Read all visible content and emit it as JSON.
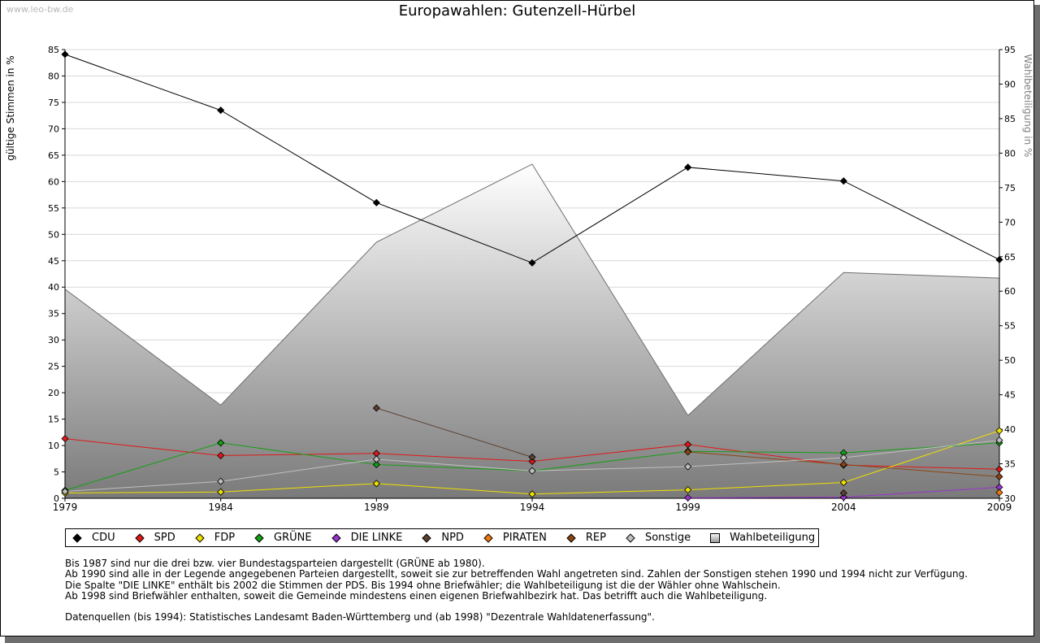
{
  "watermark": "www.leo-bw.de",
  "chart_data": {
    "type": "line",
    "title": "Europawahlen: Gutenzell-Hürbel",
    "ylabel": "gültige Stimmen in %",
    "y2label": "Wahlbeteiligung in %",
    "x": [
      1979,
      1984,
      1989,
      1994,
      1999,
      2004,
      2009
    ],
    "ylim": [
      0,
      85
    ],
    "y2lim": [
      30,
      95
    ],
    "yticks": [
      0,
      5,
      10,
      15,
      20,
      25,
      30,
      35,
      40,
      45,
      50,
      55,
      60,
      65,
      70,
      75,
      80,
      85
    ],
    "y2ticks": [
      30,
      35,
      40,
      45,
      50,
      55,
      60,
      65,
      70,
      75,
      80,
      85,
      90,
      95
    ],
    "grid": true,
    "area_series": {
      "name": "Wahlbeteiligung",
      "axis": "right",
      "values": [
        60.3,
        43.5,
        67.1,
        78.4,
        42.0,
        62.7,
        61.9
      ]
    },
    "series": [
      {
        "name": "CDU",
        "color": "#000000",
        "values": [
          84.1,
          73.5,
          56.0,
          44.6,
          62.7,
          60.1,
          45.2
        ]
      },
      {
        "name": "SPD",
        "color": "#e01818",
        "values": [
          11.3,
          8.1,
          8.5,
          7.0,
          10.2,
          6.3,
          5.5
        ]
      },
      {
        "name": "FDP",
        "color": "#f0e000",
        "values": [
          1.0,
          1.2,
          2.8,
          0.8,
          1.6,
          3.0,
          12.8
        ]
      },
      {
        "name": "GRÜNE",
        "color": "#14a014",
        "values": [
          1.5,
          10.5,
          6.4,
          5.2,
          8.9,
          8.6,
          10.5
        ]
      },
      {
        "name": "DIE LINKE",
        "color": "#9933cc",
        "values": [
          null,
          null,
          null,
          null,
          0.1,
          0.2,
          2.1
        ]
      },
      {
        "name": "NPD",
        "color": "#5a4030",
        "values": [
          null,
          null,
          17.1,
          7.8,
          null,
          1.0,
          null
        ]
      },
      {
        "name": "PIRATEN",
        "color": "#f07810",
        "values": [
          null,
          null,
          null,
          null,
          null,
          null,
          1.1
        ]
      },
      {
        "name": "REP",
        "color": "#8b4513",
        "values": [
          null,
          null,
          null,
          null,
          8.8,
          6.4,
          4.1
        ]
      },
      {
        "name": "Sonstige",
        "color": "#c0c0c0",
        "values": [
          1.3,
          3.2,
          7.4,
          5.2,
          6.0,
          7.7,
          11.0
        ]
      }
    ]
  },
  "legend": [
    {
      "label": "CDU",
      "color": "#000000",
      "shape": "diamond"
    },
    {
      "label": "SPD",
      "color": "#e01818",
      "shape": "diamond"
    },
    {
      "label": "FDP",
      "color": "#f0e000",
      "shape": "diamond"
    },
    {
      "label": "GRÜNE",
      "color": "#14a014",
      "shape": "diamond"
    },
    {
      "label": "DIE LINKE",
      "color": "#9933cc",
      "shape": "diamond"
    },
    {
      "label": "NPD",
      "color": "#5a4030",
      "shape": "diamond"
    },
    {
      "label": "PIRATEN",
      "color": "#f07810",
      "shape": "diamond"
    },
    {
      "label": "REP",
      "color": "#8b4513",
      "shape": "diamond"
    },
    {
      "label": "Sonstige",
      "color": "#c0c0c0",
      "shape": "diamond"
    },
    {
      "label": "Wahlbeteiligung",
      "color": "#c8c8c8",
      "shape": "square"
    }
  ],
  "notes": [
    "Bis 1987 sind nur die drei bzw. vier Bundestagsparteien dargestellt (GRÜNE ab 1980).",
    "Ab 1990 sind alle in der Legende angegebenen Parteien dargestellt, soweit sie zur betreffenden Wahl angetreten sind. Zahlen der Sonstigen stehen 1990 und 1994 nicht zur Verfügung.",
    "Die Spalte \"DIE LINKE\" enthält bis 2002 die Stimmen der PDS. Bis 1994 ohne Briefwähler; die Wahlbeteiligung ist die der Wähler ohne Wahlschein.",
    "Ab 1998 sind Briefwähler enthalten, soweit die Gemeinde mindestens einen eigenen Briefwahlbezirk hat. Das betrifft auch die Wahlbeteiligung."
  ],
  "sources": "Datenquellen (bis 1994): Statistisches Landesamt Baden-Württemberg und (ab 1998) \"Dezentrale Wahldatenerfassung\"."
}
